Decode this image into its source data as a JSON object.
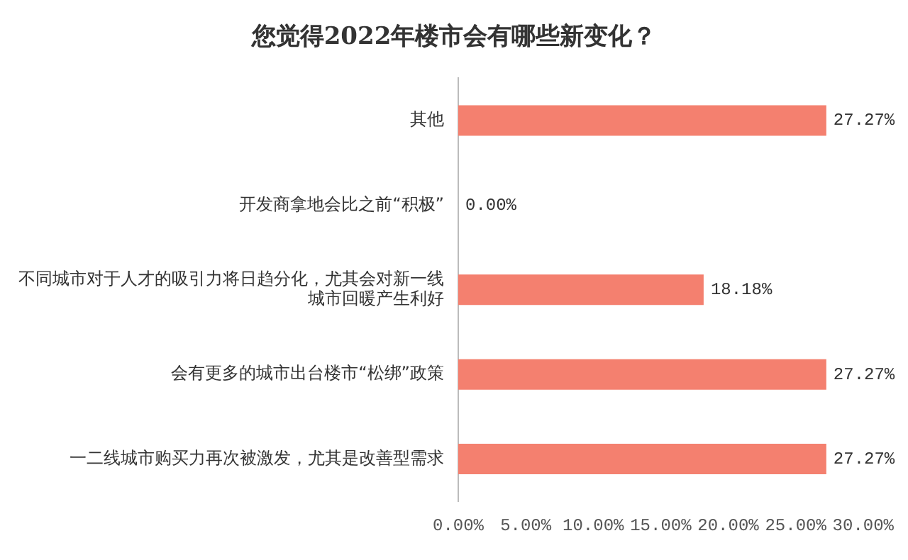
{
  "chart_data": {
    "type": "bar",
    "orientation": "horizontal",
    "title": "您觉得2022年楼市会有哪些新变化？",
    "categories": [
      "其他",
      "开发商拿地会比之前“积极”",
      "不同城市对于人才的吸引力将日趋分化，尤其会对新一线城市回暖产生利好",
      "会有更多的城市出台楼市“松绑”政策",
      "一二线城市购买力再次被激发，尤其是改善型需求"
    ],
    "values": [
      27.27,
      0,
      18.18,
      27.27,
      27.27
    ],
    "value_labels": [
      "27.27%",
      "0.00%",
      "18.18%",
      "27.27%",
      "27.27%"
    ],
    "color": "#f4806f",
    "xlim": [
      0,
      30
    ],
    "xticks": [
      {
        "value": 0,
        "label": "0.00%"
      },
      {
        "value": 5,
        "label": "5.00%"
      },
      {
        "value": 10,
        "label": "10.00%"
      },
      {
        "value": 15,
        "label": "15.00%"
      },
      {
        "value": 20,
        "label": "20.00%"
      },
      {
        "value": 25,
        "label": "25.00%"
      },
      {
        "value": 30,
        "label": "30.00%"
      }
    ],
    "grid": false,
    "legend": false
  }
}
